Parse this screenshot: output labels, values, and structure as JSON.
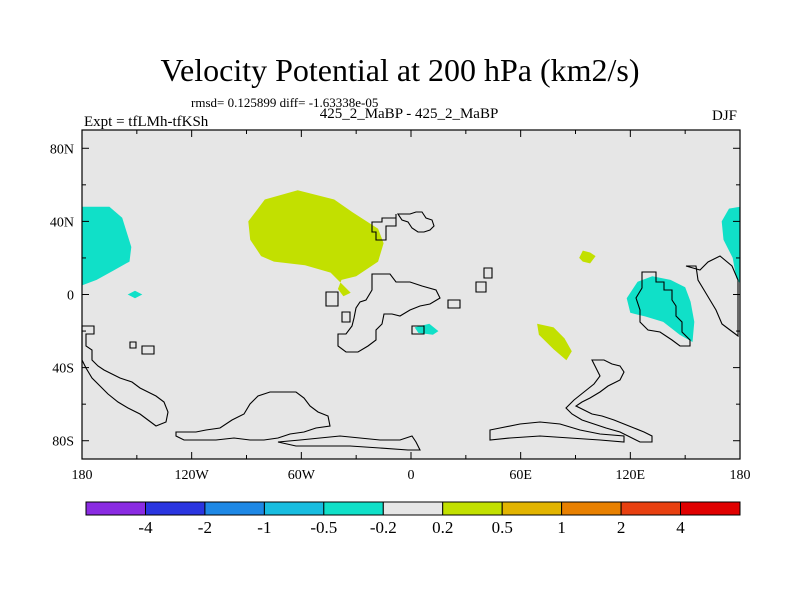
{
  "chart_data": {
    "type": "contour-map",
    "title": "Velocity Potential at 200 hPa (km2/s)",
    "stats_line": "rmsd= 0.125899 diff= -1.63338e-05",
    "subtitle": "425_2_MaBP - 425_2_MaBP",
    "left_label": "Expt = tfLMh-tfKSh",
    "right_label": "DJF",
    "xlim": [
      -180,
      180
    ],
    "ylim": [
      -90,
      90
    ],
    "x_ticks": [
      {
        "value": -180,
        "label": "180"
      },
      {
        "value": -120,
        "label": "120W"
      },
      {
        "value": -60,
        "label": "60W"
      },
      {
        "value": 0,
        "label": "0"
      },
      {
        "value": 60,
        "label": "60E"
      },
      {
        "value": 120,
        "label": "120E"
      },
      {
        "value": 180,
        "label": "180"
      }
    ],
    "y_ticks": [
      {
        "value": 80,
        "label": "80N"
      },
      {
        "value": 40,
        "label": "40N"
      },
      {
        "value": 0,
        "label": "0"
      },
      {
        "value": -40,
        "label": "40S"
      },
      {
        "value": -80,
        "label": "80S"
      }
    ],
    "colorbar": {
      "colors": [
        "#8a2be2",
        "#2a35e0",
        "#1e88e5",
        "#18bde0",
        "#10e0c8",
        "#e6e6e6",
        "#c2e000",
        "#e2b400",
        "#e88000",
        "#e84010",
        "#e00000"
      ],
      "levels": [
        "-4",
        "-2",
        "-1",
        "-0.5",
        "-0.2",
        "0.2",
        "0.5",
        "1",
        "2",
        "4"
      ]
    },
    "regions": [
      {
        "name": "west-pacific-northern",
        "category": "-0.5 to -0.2",
        "color": "#10e0c8",
        "points": [
          [
            -180,
            48
          ],
          [
            -165,
            48
          ],
          [
            -158,
            42
          ],
          [
            -153,
            26
          ],
          [
            -154,
            18
          ],
          [
            -163,
            13
          ],
          [
            -172,
            8
          ],
          [
            -180,
            5
          ]
        ]
      },
      {
        "name": "east-pacific-northern",
        "category": "-0.5 to -0.2",
        "color": "#10e0c8",
        "points": [
          [
            180,
            48
          ],
          [
            174,
            47
          ],
          [
            170,
            40
          ],
          [
            171,
            30
          ],
          [
            176,
            20
          ],
          [
            178,
            9
          ],
          [
            180,
            6
          ]
        ]
      },
      {
        "name": "mid-pacific-small",
        "category": "-0.5 to -0.2",
        "color": "#10e0c8",
        "points": [
          [
            -151,
            2
          ],
          [
            -147,
            0
          ],
          [
            -151,
            -2
          ],
          [
            -155,
            0
          ]
        ]
      },
      {
        "name": "atlantic-north",
        "category": "0.2 to 0.5",
        "color": "#c2e000",
        "points": [
          [
            -89,
            40
          ],
          [
            -80,
            52
          ],
          [
            -62,
            57
          ],
          [
            -42,
            52
          ],
          [
            -32,
            45
          ],
          [
            -18,
            36
          ],
          [
            -15,
            28
          ],
          [
            -18,
            18
          ],
          [
            -30,
            10
          ],
          [
            -38,
            8
          ],
          [
            -40,
            3
          ],
          [
            -37,
            -1
          ],
          [
            -33,
            1
          ],
          [
            -44,
            12
          ],
          [
            -58,
            16
          ],
          [
            -75,
            18
          ],
          [
            -82,
            21
          ],
          [
            -88,
            30
          ]
        ]
      },
      {
        "name": "equatorial-africa",
        "category": "-0.5 to -0.2",
        "color": "#10e0c8",
        "points": [
          [
            2,
            -18
          ],
          [
            10,
            -16
          ],
          [
            15,
            -20
          ],
          [
            12,
            -22
          ],
          [
            4,
            -21
          ]
        ]
      },
      {
        "name": "central-asia",
        "category": "0.2 to 0.5",
        "color": "#c2e000",
        "points": [
          [
            94,
            24
          ],
          [
            98,
            23
          ],
          [
            101,
            21
          ],
          [
            98,
            17
          ],
          [
            94,
            18
          ],
          [
            92,
            20
          ]
        ]
      },
      {
        "name": "indian-ocean",
        "category": "0.2 to 0.5",
        "color": "#c2e000",
        "points": [
          [
            69,
            -16
          ],
          [
            78,
            -18
          ],
          [
            84,
            -24
          ],
          [
            88,
            -31
          ],
          [
            85,
            -36
          ],
          [
            78,
            -30
          ],
          [
            70,
            -22
          ]
        ]
      },
      {
        "name": "maritime-continent",
        "category": "-0.5 to -0.2",
        "color": "#10e0c8",
        "points": [
          [
            118,
            -2
          ],
          [
            124,
            7
          ],
          [
            132,
            10
          ],
          [
            142,
            8
          ],
          [
            150,
            4
          ],
          [
            153,
            -4
          ],
          [
            155,
            -15
          ],
          [
            154,
            -26
          ],
          [
            147,
            -22
          ],
          [
            138,
            -15
          ],
          [
            128,
            -12
          ],
          [
            120,
            -10
          ]
        ]
      }
    ]
  }
}
